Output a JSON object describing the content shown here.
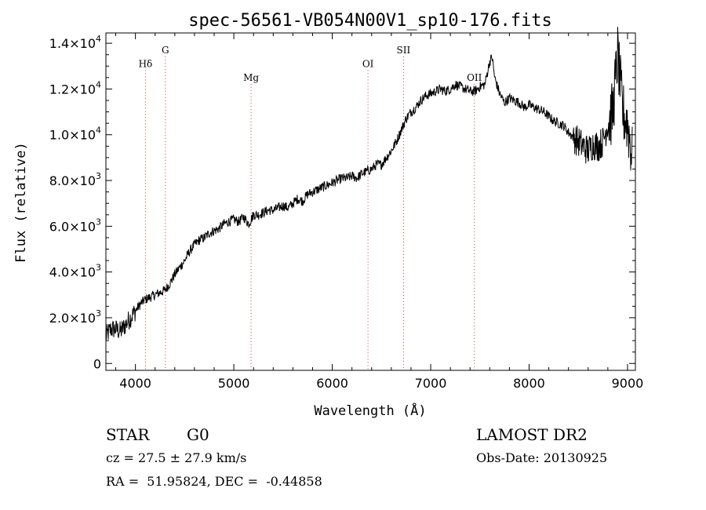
{
  "chart_data": {
    "type": "line",
    "title": "spec-56561-VB054N00V1_sp10-176.fits",
    "xlabel": "Wavelength (Å)",
    "ylabel": "Flux (relative)",
    "xlim": [
      3700,
      9080
    ],
    "ylim": [
      -300,
      14450
    ],
    "x_ticks": [
      4000,
      5000,
      6000,
      7000,
      8000,
      9000
    ],
    "x_tick_labels": [
      "4000",
      "5000",
      "6000",
      "7000",
      "8000",
      "9000"
    ],
    "y_ticks": [
      0,
      2000,
      4000,
      6000,
      8000,
      10000,
      12000,
      14000
    ],
    "y_tick_labels": [
      {
        "mant": "0",
        "exp": ""
      },
      {
        "mant": "2.0×10",
        "exp": "3"
      },
      {
        "mant": "4.0×10",
        "exp": "3"
      },
      {
        "mant": "6.0×10",
        "exp": "3"
      },
      {
        "mant": "8.0×10",
        "exp": "3"
      },
      {
        "mant": "1.0×10",
        "exp": "4"
      },
      {
        "mant": "1.2×10",
        "exp": "4"
      },
      {
        "mant": "1.4×10",
        "exp": "4"
      }
    ],
    "line_color": "#000000",
    "line_marker_color": "#cc3333",
    "grid": false,
    "spectral_lines": [
      {
        "label": "Hδ",
        "x": 4102,
        "label_y": 13100
      },
      {
        "label": "G",
        "x": 4304,
        "label_y": 13700
      },
      {
        "label": "Mg",
        "x": 5175,
        "label_y": 12500
      },
      {
        "label": "OI",
        "x": 6363,
        "label_y": 13100
      },
      {
        "label": "SII",
        "x": 6724,
        "label_y": 13700
      },
      {
        "label": "OII",
        "x": 7444,
        "label_y": 12500
      }
    ],
    "series": [
      {
        "x": [
          3700,
          3750,
          3800,
          3850,
          3900,
          3950,
          4000,
          4050,
          4100,
          4150,
          4200,
          4250,
          4300,
          4350,
          4400,
          4450,
          4500,
          4550,
          4600,
          4650,
          4700,
          4750,
          4800,
          4850,
          4900,
          4950,
          5000,
          5050,
          5100,
          5150,
          5200,
          5250,
          5300,
          5350,
          5400,
          5450,
          5500,
          5550,
          5600,
          5650,
          5700,
          5750,
          5800,
          5850,
          5900,
          5950,
          6000,
          6050,
          6100,
          6150,
          6200,
          6250,
          6300,
          6350,
          6400,
          6450,
          6500,
          6550,
          6600,
          6650,
          6700,
          6750,
          6800,
          6850,
          6900,
          6950,
          7000,
          7050,
          7100,
          7150,
          7200,
          7250,
          7300,
          7350,
          7400,
          7450,
          7500,
          7550,
          7600,
          7625,
          7650,
          7700,
          7750,
          7800,
          7850,
          7900,
          7950,
          8000,
          8050,
          8100,
          8150,
          8200,
          8250,
          8300,
          8350,
          8400,
          8450,
          8500,
          8550,
          8600,
          8650,
          8700,
          8750,
          8800,
          8850,
          8900,
          8950,
          9000,
          9050
        ],
        "y": [
          1200,
          1500,
          1500,
          1400,
          1700,
          2000,
          2300,
          2600,
          2800,
          2900,
          3000,
          3100,
          3200,
          3500,
          3900,
          4200,
          4500,
          4900,
          5200,
          5400,
          5500,
          5700,
          5800,
          5900,
          6100,
          6200,
          6300,
          6200,
          6400,
          6100,
          6500,
          6500,
          6600,
          6700,
          6700,
          6800,
          6900,
          6800,
          7000,
          7200,
          7100,
          7400,
          7500,
          7600,
          7700,
          7800,
          7900,
          8000,
          8100,
          8100,
          8200,
          8100,
          8300,
          8400,
          8500,
          8700,
          8700,
          9000,
          9300,
          9700,
          10200,
          10700,
          11000,
          11200,
          11500,
          11700,
          11800,
          11900,
          12000,
          11900,
          12000,
          12200,
          12100,
          12000,
          11900,
          11900,
          12100,
          12200,
          13200,
          13400,
          12500,
          11800,
          11400,
          11600,
          11500,
          11400,
          11200,
          11300,
          11200,
          11100,
          11000,
          10800,
          10600,
          10500,
          10400,
          10100,
          9900,
          9700,
          9500,
          9300,
          9600,
          9500,
          9700,
          10500,
          11000,
          13500,
          11000,
          10500,
          9000
        ]
      }
    ]
  },
  "info": {
    "object_class": "STAR",
    "subclass": "G0",
    "survey": "LAMOST DR2",
    "cz_line": "cz = 27.5 ± 27.9 km/s",
    "obs_date_line": "Obs-Date: 20130925",
    "radec_line": "RA =  51.95824, DEC =  -0.44858"
  }
}
